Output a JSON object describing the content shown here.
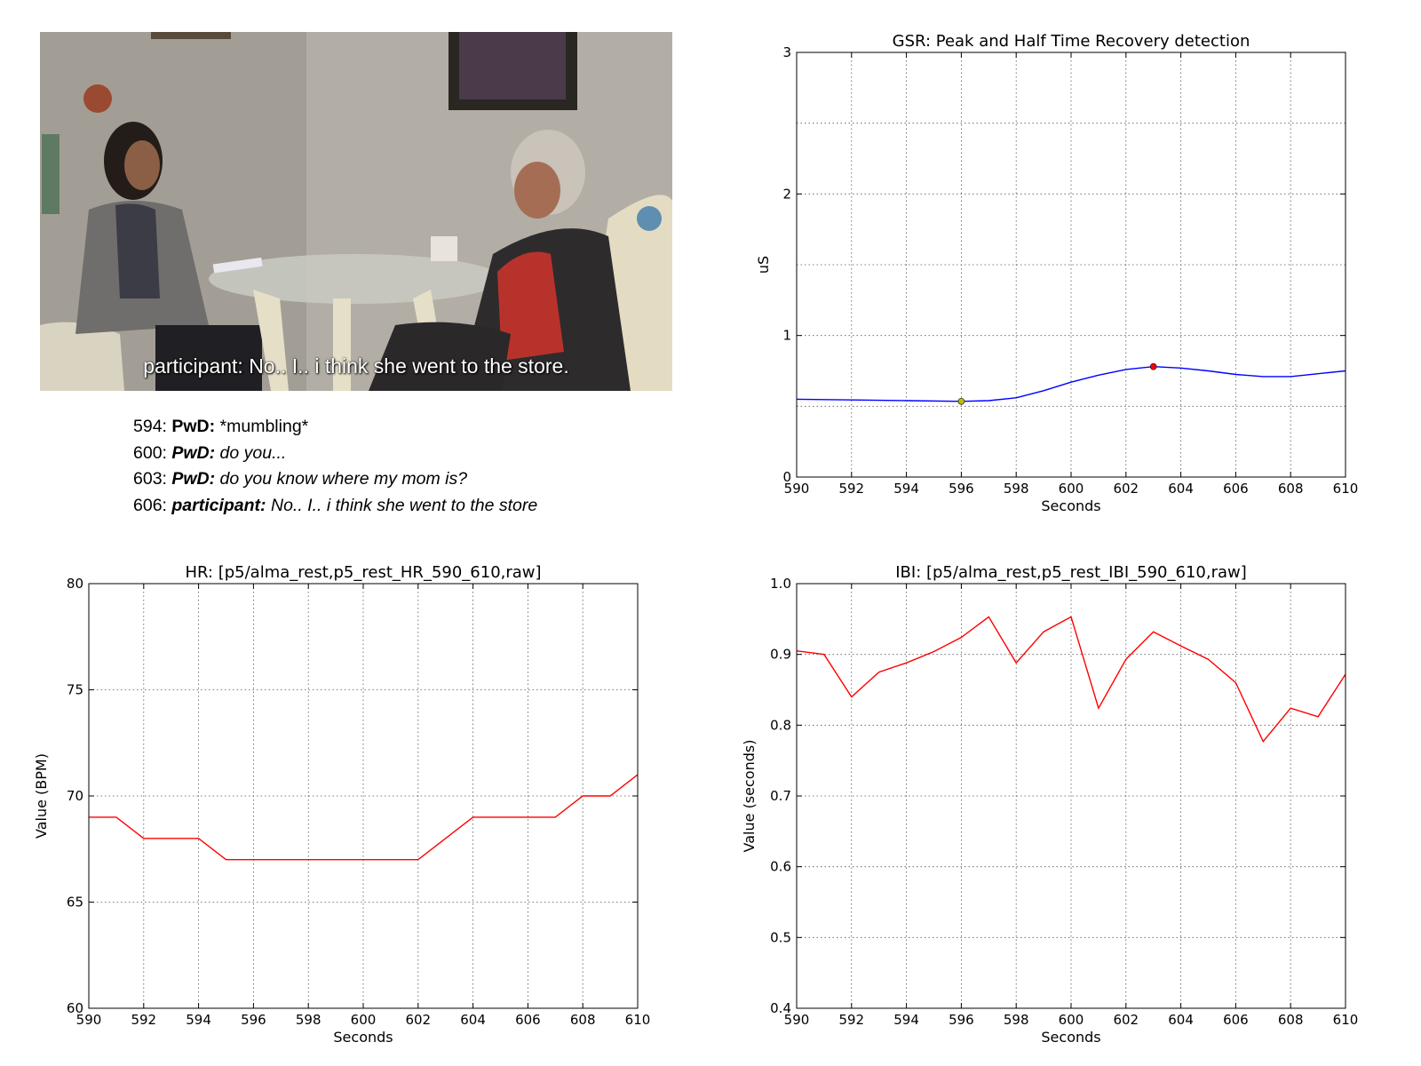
{
  "video": {
    "subtitle": "participant: No.. I.. i think she went to the store."
  },
  "transcript": [
    {
      "time": "594:",
      "speaker": "PwD:",
      "text": " *mumbling*"
    },
    {
      "time": "600:",
      "speaker": "PwD:",
      "text": " do you..."
    },
    {
      "time": "603:",
      "speaker": "PwD:",
      "text": " do you know where my mom is?"
    },
    {
      "time": "606:",
      "speaker": "participant:",
      "text": " No.. I.. i think she went to the store"
    }
  ],
  "chart_data": [
    {
      "id": "gsr",
      "type": "line",
      "title": "GSR: Peak and Half Time Recovery detection",
      "xlabel": "Seconds",
      "ylabel": "uS",
      "xlim": [
        590,
        610
      ],
      "ylim": [
        0,
        3
      ],
      "xticks": [
        590,
        592,
        594,
        596,
        598,
        600,
        602,
        604,
        606,
        608,
        610
      ],
      "yticks": [
        0,
        1,
        2,
        3
      ],
      "ygrid": [
        0,
        0.5,
        1,
        1.5,
        2,
        2.5,
        3
      ],
      "grid": true,
      "series": [
        {
          "color": "#0000ff",
          "x": [
            590,
            592,
            594,
            596,
            597,
            598,
            599,
            600,
            601,
            602,
            603,
            604,
            605,
            606,
            607,
            608,
            609,
            610
          ],
          "y": [
            0.55,
            0.545,
            0.54,
            0.535,
            0.54,
            0.56,
            0.61,
            0.67,
            0.72,
            0.76,
            0.78,
            0.77,
            0.75,
            0.725,
            0.71,
            0.71,
            0.73,
            0.75
          ]
        }
      ],
      "markers": [
        {
          "x": 596,
          "y": 0.535,
          "color": "#bfbf00"
        },
        {
          "x": 603,
          "y": 0.78,
          "color": "#ff0000"
        }
      ]
    },
    {
      "id": "hr",
      "type": "line",
      "title": "HR: [p5/alma_rest,p5_rest_HR_590_610,raw]",
      "xlabel": "Seconds",
      "ylabel": "Value (BPM)",
      "xlim": [
        590,
        610
      ],
      "ylim": [
        60,
        80
      ],
      "xticks": [
        590,
        592,
        594,
        596,
        598,
        600,
        602,
        604,
        606,
        608,
        610
      ],
      "yticks": [
        60,
        65,
        70,
        75,
        80
      ],
      "ygrid": [
        60,
        65,
        70,
        75,
        80
      ],
      "grid": true,
      "series": [
        {
          "color": "#ff0000",
          "x": [
            590,
            591,
            592,
            593,
            594,
            595,
            596,
            597,
            598,
            599,
            600,
            601,
            602,
            603,
            604,
            605,
            606,
            607,
            608,
            609,
            610
          ],
          "y": [
            69,
            69,
            68,
            68,
            68,
            67,
            67,
            67,
            67,
            67,
            67,
            67,
            67,
            68,
            69,
            69,
            69,
            69,
            70,
            70,
            71
          ]
        }
      ],
      "markers": []
    },
    {
      "id": "ibi",
      "type": "line",
      "title": "IBI: [p5/alma_rest,p5_rest_IBI_590_610,raw]",
      "xlabel": "Seconds",
      "ylabel": "Value (seconds)",
      "xlim": [
        590,
        610
      ],
      "ylim": [
        0.4,
        1.0
      ],
      "xticks": [
        590,
        592,
        594,
        596,
        598,
        600,
        602,
        604,
        606,
        608,
        610
      ],
      "yticks": [
        0.4,
        0.5,
        0.6,
        0.7,
        0.8,
        0.9,
        1.0
      ],
      "ygrid": [
        0.4,
        0.5,
        0.6,
        0.7,
        0.8,
        0.9,
        1.0
      ],
      "grid": true,
      "series": [
        {
          "color": "#ff0000",
          "x": [
            590,
            591,
            592,
            593,
            594,
            595,
            596,
            597,
            598,
            599,
            600,
            601,
            602,
            603,
            604,
            605,
            606,
            607,
            608,
            609,
            610
          ],
          "y": [
            0.905,
            0.9,
            0.84,
            0.875,
            0.888,
            0.904,
            0.924,
            0.953,
            0.888,
            0.932,
            0.953,
            0.824,
            0.893,
            0.932,
            0.912,
            0.893,
            0.86,
            0.777,
            0.824,
            0.812,
            0.872
          ]
        }
      ],
      "markers": []
    }
  ]
}
